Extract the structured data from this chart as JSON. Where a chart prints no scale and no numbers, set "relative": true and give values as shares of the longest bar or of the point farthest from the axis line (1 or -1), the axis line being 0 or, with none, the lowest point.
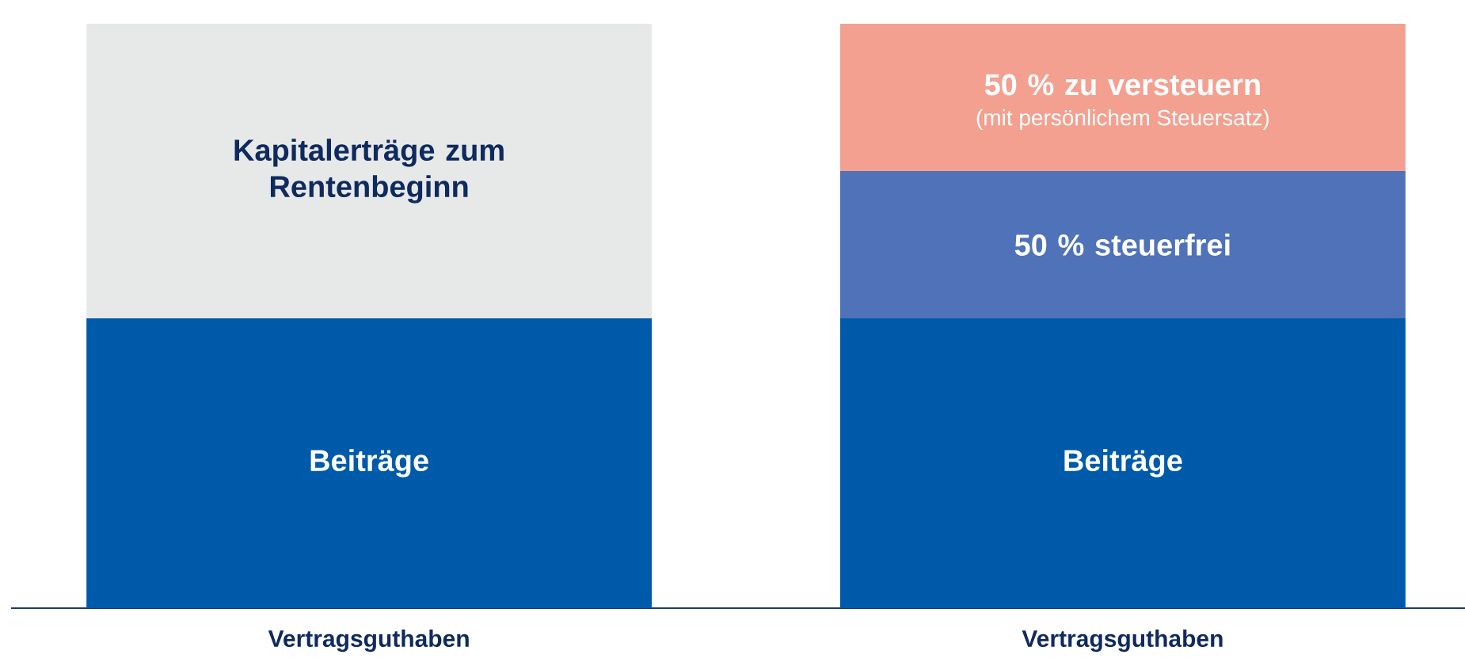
{
  "chart_data": {
    "type": "bar",
    "stacked": true,
    "relative": true,
    "categories": [
      "Vertragsguthaben",
      "Vertragsguthaben"
    ],
    "series": [
      {
        "name": "Beiträge",
        "color": "#005aaa",
        "values": [
          0.496,
          0.496
        ]
      },
      {
        "name": "Kapitalerträge zum Rentenbeginn",
        "color": "#e6e9e8",
        "values": [
          0.504,
          null
        ]
      },
      {
        "name": "50 % steuerfrei",
        "color": "#4f72b8",
        "values": [
          null,
          0.252
        ]
      },
      {
        "name": "50 % zu versteuern",
        "color": "#f4a090",
        "values": [
          null,
          0.252
        ]
      }
    ],
    "annotations": [
      "(mit persönlichem Steuersatz)"
    ]
  }
}
